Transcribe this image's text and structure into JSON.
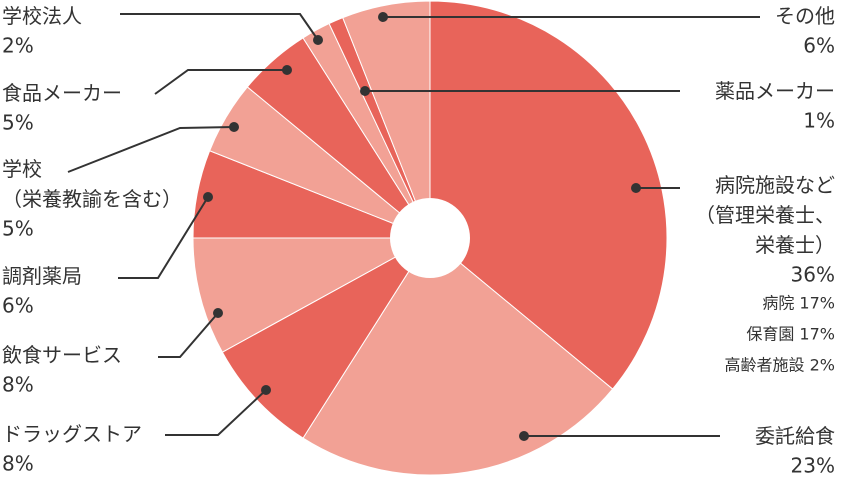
{
  "chart_data": {
    "type": "pie",
    "categories": [
      "病院施設など\n（管理栄養士、\n栄養士）",
      "委託給食",
      "ドラッグストア",
      "飲食サービス",
      "調剤薬局",
      "学校\n（栄養教諭を含む）",
      "食品メーカー",
      "学校法人",
      "薬品メーカー",
      "その他"
    ],
    "values": [
      36,
      23,
      8,
      8,
      6,
      5,
      5,
      2,
      1,
      6
    ],
    "value_labels": [
      "36%",
      "23%",
      "8%",
      "8%",
      "6%",
      "5%",
      "5%",
      "2%",
      "1%",
      "6%"
    ],
    "colors": [
      "#e8645a",
      "#f2a195",
      "#e8645a",
      "#f2a195",
      "#e8645a",
      "#f2a195",
      "#e8645a",
      "#f2a195",
      "#e8645a",
      "#f2a195"
    ],
    "annotations": [
      "病院 17%",
      "保育園 17%",
      "高齢者施設 2%"
    ]
  }
}
